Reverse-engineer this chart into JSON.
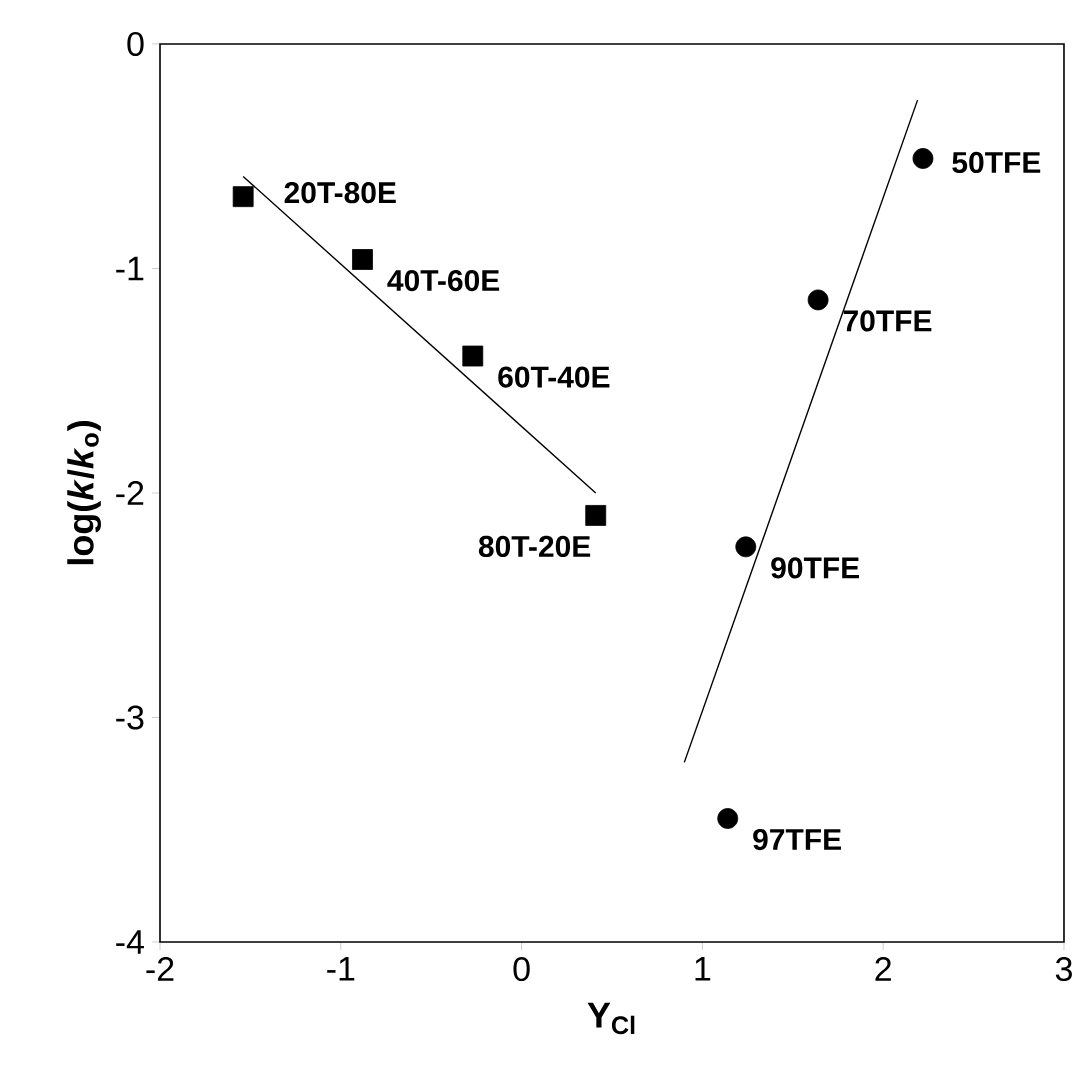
{
  "chart_data": {
    "type": "scatter",
    "xlabel": "Y$_{Cl}$",
    "ylabel": "log(*k*/*k*$_{o}$)",
    "xlim": [
      -2,
      3
    ],
    "ylim": [
      -4,
      0
    ],
    "xticks": [
      -2,
      -1,
      0,
      1,
      2,
      3
    ],
    "yticks": [
      -4,
      -3,
      -2,
      -1,
      0
    ],
    "series": [
      {
        "marker": "square",
        "color": "#000000",
        "x": [
          -1.54,
          -0.88,
          -0.27,
          0.41
        ],
        "values": [
          -0.68,
          -0.96,
          -1.39,
          -2.1
        ]
      },
      {
        "marker": "circle",
        "color": "#000000",
        "x": [
          2.22,
          1.64,
          1.24,
          1.14
        ],
        "values": [
          -0.51,
          -1.14,
          -2.24,
          -3.45
        ]
      },
      {
        "type": "line",
        "marker": "none",
        "line_style": "solid",
        "color": "#000000",
        "x": [
          -1.54,
          0.41
        ],
        "values": [
          -0.59,
          -2.0
        ]
      },
      {
        "type": "line",
        "marker": "none",
        "line_style": "solid",
        "color": "#000000",
        "x": [
          0.9,
          2.19
        ],
        "values": [
          -3.2,
          -0.25
        ]
      }
    ],
    "annotations": [
      {
        "text": "20T-80E",
        "x": -1.54,
        "y": -0.68
      },
      {
        "text": "40T-60E",
        "x": -0.88,
        "y": -0.96
      },
      {
        "text": "60T-40E",
        "x": -0.27,
        "y": -1.39
      },
      {
        "text": "80T-20E",
        "x": 0.41,
        "y": -2.1
      },
      {
        "text": "50TFE",
        "x": 2.22,
        "y": -0.51
      },
      {
        "text": "70TFE",
        "x": 1.64,
        "y": -1.14
      },
      {
        "text": "90TFE",
        "x": 1.24,
        "y": -2.24
      },
      {
        "text": "97TFE",
        "x": 1.14,
        "y": -3.45
      }
    ]
  }
}
